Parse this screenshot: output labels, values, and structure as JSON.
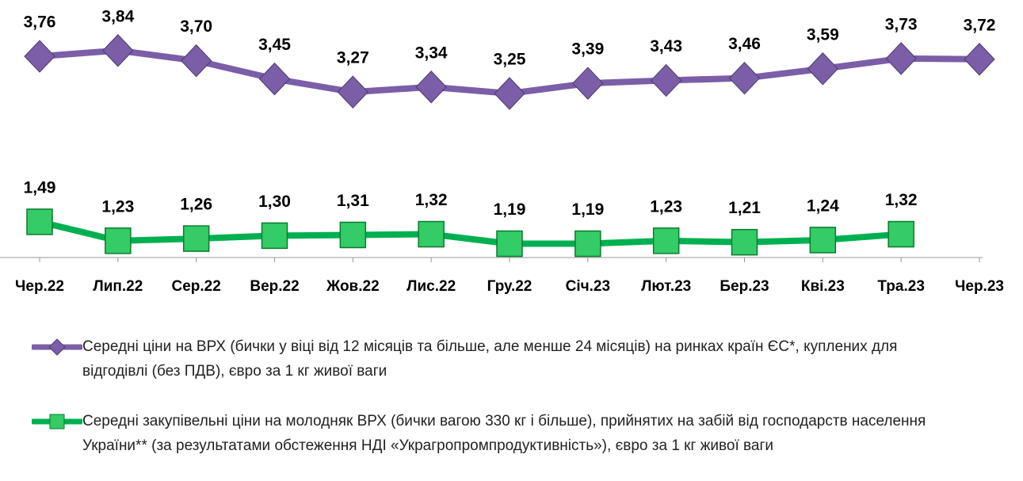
{
  "chart_data": {
    "type": "line",
    "categories": [
      "Чер.22",
      "Лип.22",
      "Сер.22",
      "Вер.22",
      "Жов.22",
      "Лис.22",
      "Гру.22",
      "Січ.23",
      "Лют.23",
      "Бер.23",
      "Кві.23",
      "Тра.23",
      "Чер.23"
    ],
    "ylim": [
      1,
      4.5
    ],
    "series": [
      {
        "name": "Середні ціни на ВРХ (бички у віці від 12 місяців та більше, але менше 24 місяців) на ринках країн ЄС*, куплених для відгодівлі (без ПДВ), євро за 1 кг живої ваги",
        "color": "#7b5ea7",
        "marker": "diamond",
        "values": [
          3.76,
          3.84,
          3.7,
          3.45,
          3.27,
          3.34,
          3.25,
          3.39,
          3.43,
          3.46,
          3.59,
          3.73,
          3.72
        ],
        "value_labels": [
          "3,76",
          "3,84",
          "3,70",
          "3,45",
          "3,27",
          "3,34",
          "3,25",
          "3,39",
          "3,43",
          "3,46",
          "3,59",
          "3,73",
          "3,72"
        ]
      },
      {
        "name": "Середні закупівельні ціни на молодняк ВРХ (бички вагою 330 кг і більше), прийнятих на забій від господарств населення України** (за результатами обстеження НДІ «Украгропромпродуктивність»), євро за 1 кг живої ваги",
        "color": "#00b050",
        "marker": "square",
        "values": [
          1.49,
          1.23,
          1.26,
          1.3,
          1.31,
          1.32,
          1.19,
          1.19,
          1.23,
          1.21,
          1.24,
          1.32,
          null
        ],
        "value_labels": [
          "1,49",
          "1,23",
          "1,26",
          "1,30",
          "1,31",
          "1,32",
          "1,19",
          "1,19",
          "1,23",
          "1,21",
          "1,24",
          "1,32",
          null
        ]
      }
    ]
  }
}
